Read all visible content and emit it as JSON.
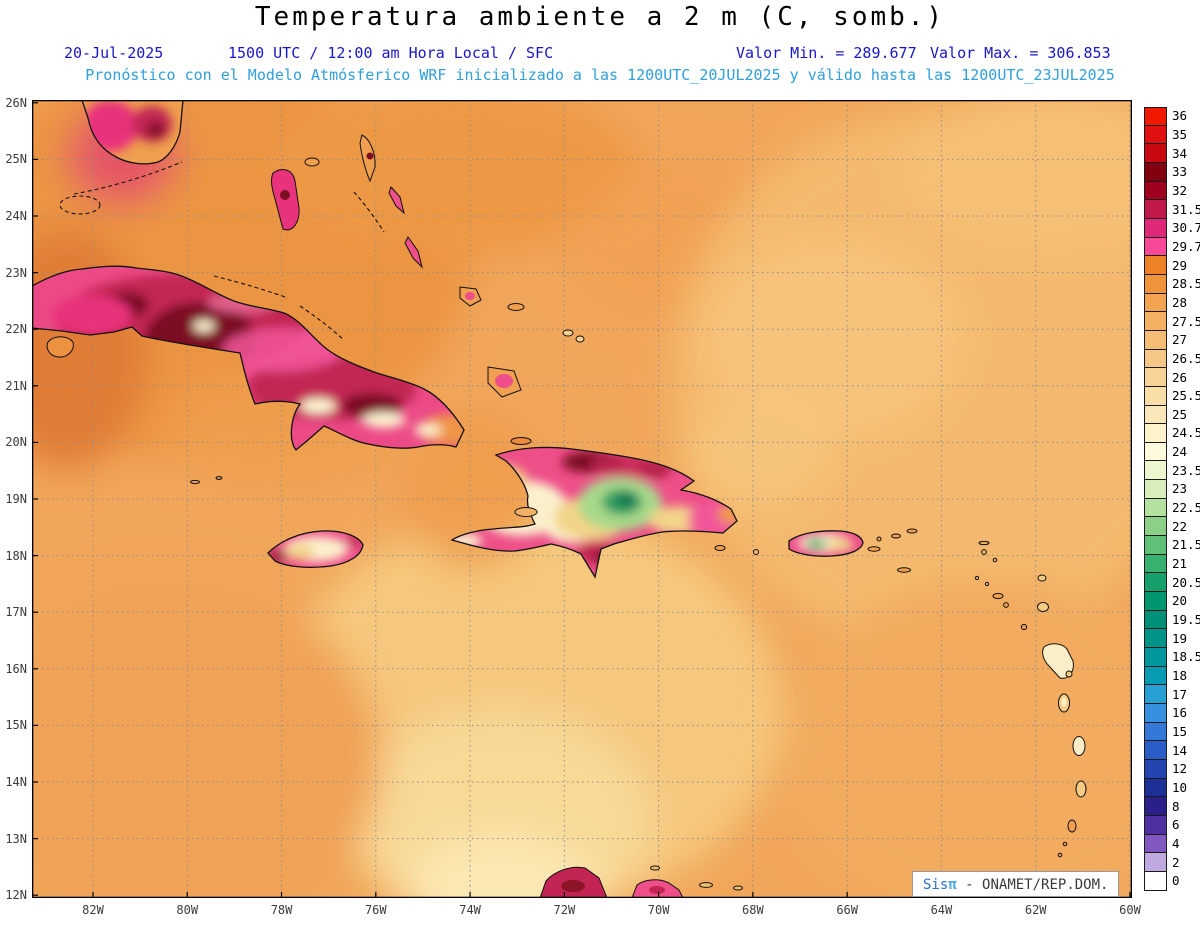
{
  "header": {
    "title": "Temperatura ambiente a 2 m (C, somb.)",
    "date": "20-Jul-2025",
    "time_line": "1500 UTC / 12:00 am Hora Local / SFC",
    "min_label": "Valor Min. = 289.677",
    "max_label": "Valor Max. = 306.853",
    "forecast_line": "Pronóstico con el Modelo Atmósferico WRF inicializado a las 1200UTC_20JUL2025 y válido hasta las 1200UTC_23JUL2025"
  },
  "axes": {
    "lat_ticks": [
      "26N",
      "25N",
      "24N",
      "23N",
      "22N",
      "21N",
      "20N",
      "19N",
      "18N",
      "17N",
      "16N",
      "15N",
      "14N",
      "13N",
      "12N"
    ],
    "lon_ticks": [
      "82W",
      "80W",
      "78W",
      "76W",
      "74W",
      "72W",
      "70W",
      "68W",
      "66W",
      "64W",
      "62W",
      "60W"
    ]
  },
  "legend": {
    "entries": [
      {
        "label": "36",
        "color": "#f01800"
      },
      {
        "label": "35",
        "color": "#e01010"
      },
      {
        "label": "34",
        "color": "#c80810"
      },
      {
        "label": "33",
        "color": "#800010"
      },
      {
        "label": "32",
        "color": "#a00020"
      },
      {
        "label": "31.5",
        "color": "#c01848"
      },
      {
        "label": "30.7",
        "color": "#e02878"
      },
      {
        "label": "29.7",
        "color": "#f84898"
      },
      {
        "label": "29",
        "color": "#ee8228"
      },
      {
        "label": "28.5",
        "color": "#f0943c"
      },
      {
        "label": "28",
        "color": "#f2a452"
      },
      {
        "label": "27.5",
        "color": "#f4b164"
      },
      {
        "label": "27",
        "color": "#f5bd76"
      },
      {
        "label": "26.5",
        "color": "#f6c888"
      },
      {
        "label": "26",
        "color": "#f7d398"
      },
      {
        "label": "25.5",
        "color": "#f9dea8"
      },
      {
        "label": "25",
        "color": "#fae8ba"
      },
      {
        "label": "24.5",
        "color": "#fcf2cc"
      },
      {
        "label": "24",
        "color": "#fdfade"
      },
      {
        "label": "23.5",
        "color": "#eef6d0"
      },
      {
        "label": "23",
        "color": "#d8eebc"
      },
      {
        "label": "22.5",
        "color": "#b4e0a0"
      },
      {
        "label": "22",
        "color": "#8cd088"
      },
      {
        "label": "21.5",
        "color": "#60c078"
      },
      {
        "label": "21",
        "color": "#38b070"
      },
      {
        "label": "20.5",
        "color": "#18a06c"
      },
      {
        "label": "20",
        "color": "#009670"
      },
      {
        "label": "19.5",
        "color": "#009078"
      },
      {
        "label": "19",
        "color": "#009488"
      },
      {
        "label": "18.5",
        "color": "#00989c"
      },
      {
        "label": "18",
        "color": "#089cb4"
      },
      {
        "label": "17",
        "color": "#28a0d4"
      },
      {
        "label": "16",
        "color": "#3890e0"
      },
      {
        "label": "15",
        "color": "#3478d8"
      },
      {
        "label": "14",
        "color": "#2c5cc8"
      },
      {
        "label": "12",
        "color": "#2444b0"
      },
      {
        "label": "10",
        "color": "#1c3098"
      },
      {
        "label": "8",
        "color": "#282088"
      },
      {
        "label": "6",
        "color": "#5030a0"
      },
      {
        "label": "4",
        "color": "#8058c0"
      },
      {
        "label": "2",
        "color": "#c0a8e0"
      },
      {
        "label": "0",
        "color": "#ffffff"
      }
    ]
  },
  "credit": {
    "brand": "Sis",
    "pi": "π",
    "org": "- ONAMET/REP.DOM."
  },
  "chart_data": {
    "type": "heatmap",
    "title": "Temperatura ambiente a 2 m (C, somb.)",
    "units": "C",
    "valor_min": 289.677,
    "valor_max": 306.853,
    "init": "1200UTC_20JUL2025",
    "valid_until": "1200UTC_23JUL2025",
    "lat_labels_n": [
      26,
      25,
      24,
      23,
      22,
      21,
      20,
      19,
      18,
      17,
      16,
      15,
      14,
      13,
      12
    ],
    "lon_labels_w": [
      82,
      80,
      78,
      76,
      74,
      72,
      70,
      68,
      66,
      64,
      62,
      60
    ],
    "contour_levels": [
      0,
      2,
      4,
      6,
      8,
      10,
      12,
      14,
      15,
      16,
      17,
      18,
      18.5,
      19,
      19.5,
      20,
      20.5,
      21,
      21.5,
      22,
      22.5,
      23,
      23.5,
      24,
      24.5,
      25,
      25.5,
      26,
      26.5,
      27,
      27.5,
      28,
      28.5,
      29,
      29.7,
      30.7,
      31.5,
      32,
      33,
      34,
      35,
      36
    ]
  }
}
